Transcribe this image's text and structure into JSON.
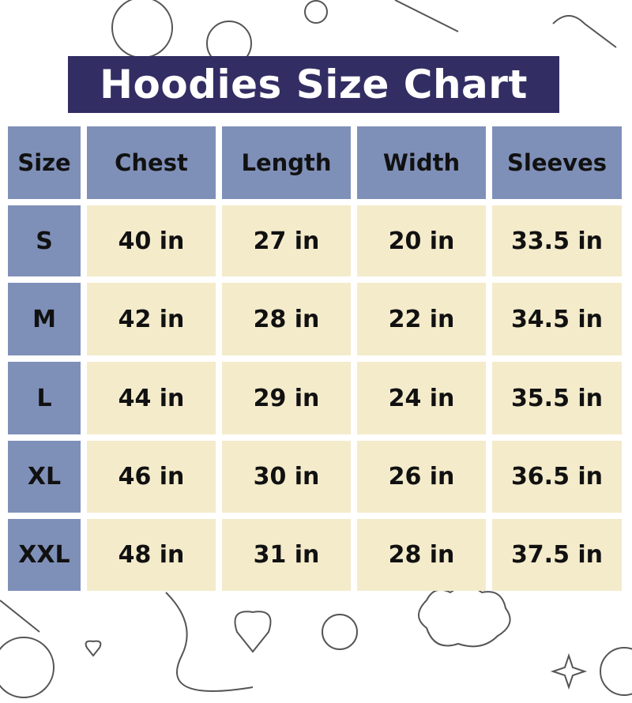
{
  "title": "Hoodies Size Chart",
  "colors": {
    "title_bg": "#322e63",
    "header_bg": "#7f90b8",
    "cell_bg": "#f4ebcb"
  },
  "table": {
    "headers": [
      "Size",
      "Chest",
      "Length",
      "Width",
      "Sleeves"
    ],
    "rows": [
      [
        "S",
        "40 in",
        "27 in",
        "20 in",
        "33.5 in"
      ],
      [
        "M",
        "42 in",
        "28 in",
        "22 in",
        "34.5 in"
      ],
      [
        "L",
        "44 in",
        "29 in",
        "24 in",
        "35.5 in"
      ],
      [
        "XL",
        "46 in",
        "30 in",
        "26 in",
        "36.5 in"
      ],
      [
        "XXL",
        "48 in",
        "31 in",
        "28 in",
        "37.5 in"
      ]
    ]
  }
}
